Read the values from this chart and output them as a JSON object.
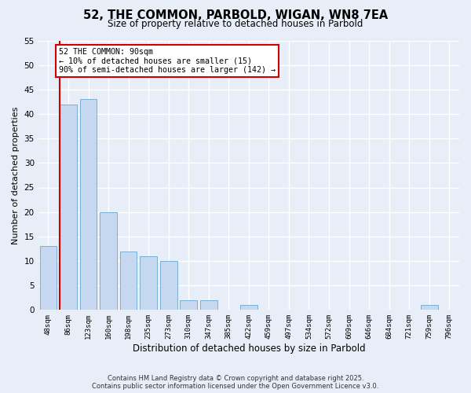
{
  "title": "52, THE COMMON, PARBOLD, WIGAN, WN8 7EA",
  "subtitle": "Size of property relative to detached houses in Parbold",
  "xlabel": "Distribution of detached houses by size in Parbold",
  "ylabel": "Number of detached properties",
  "bar_labels": [
    "48sqm",
    "86sqm",
    "123sqm",
    "160sqm",
    "198sqm",
    "235sqm",
    "273sqm",
    "310sqm",
    "347sqm",
    "385sqm",
    "422sqm",
    "459sqm",
    "497sqm",
    "534sqm",
    "572sqm",
    "609sqm",
    "646sqm",
    "684sqm",
    "721sqm",
    "759sqm",
    "796sqm"
  ],
  "bar_values": [
    13,
    42,
    43,
    20,
    12,
    11,
    10,
    2,
    2,
    0,
    1,
    0,
    0,
    0,
    0,
    0,
    0,
    0,
    0,
    1,
    0
  ],
  "bar_color": "#c5d8f0",
  "bar_edge_color": "#7bafd4",
  "vline_color": "#cc0000",
  "annotation_text": "52 THE COMMON: 90sqm\n← 10% of detached houses are smaller (15)\n90% of semi-detached houses are larger (142) →",
  "annotation_box_color": "white",
  "annotation_box_edge_color": "#cc0000",
  "ylim": [
    0,
    55
  ],
  "yticks": [
    0,
    5,
    10,
    15,
    20,
    25,
    30,
    35,
    40,
    45,
    50,
    55
  ],
  "bg_color": "#e8eef8",
  "footer1": "Contains HM Land Registry data © Crown copyright and database right 2025.",
  "footer2": "Contains public sector information licensed under the Open Government Licence v3.0."
}
